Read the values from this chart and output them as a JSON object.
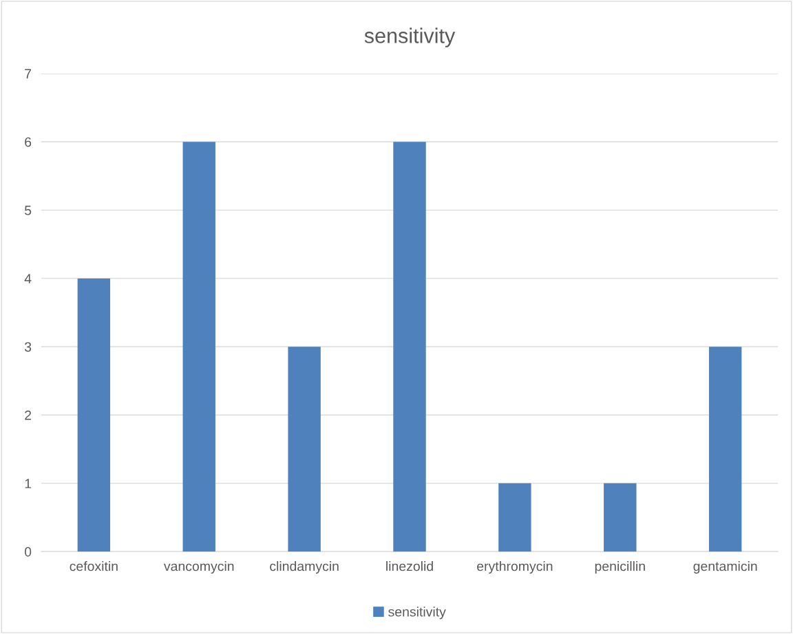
{
  "chart_data": {
    "type": "bar",
    "title": "sensitivity",
    "categories": [
      "cefoxitin",
      "vancomycin",
      "clindamycin",
      "linezolid",
      "erythromycin",
      "penicillin",
      "gentamicin"
    ],
    "series": [
      {
        "name": "sensitivity",
        "color": "#4f81bd",
        "values": [
          4,
          6,
          3,
          6,
          1,
          1,
          3
        ]
      }
    ],
    "ylim": [
      0,
      7
    ],
    "yticks": [
      0,
      1,
      2,
      3,
      4,
      5,
      6,
      7
    ],
    "grid": "y",
    "legend": "bottom"
  }
}
